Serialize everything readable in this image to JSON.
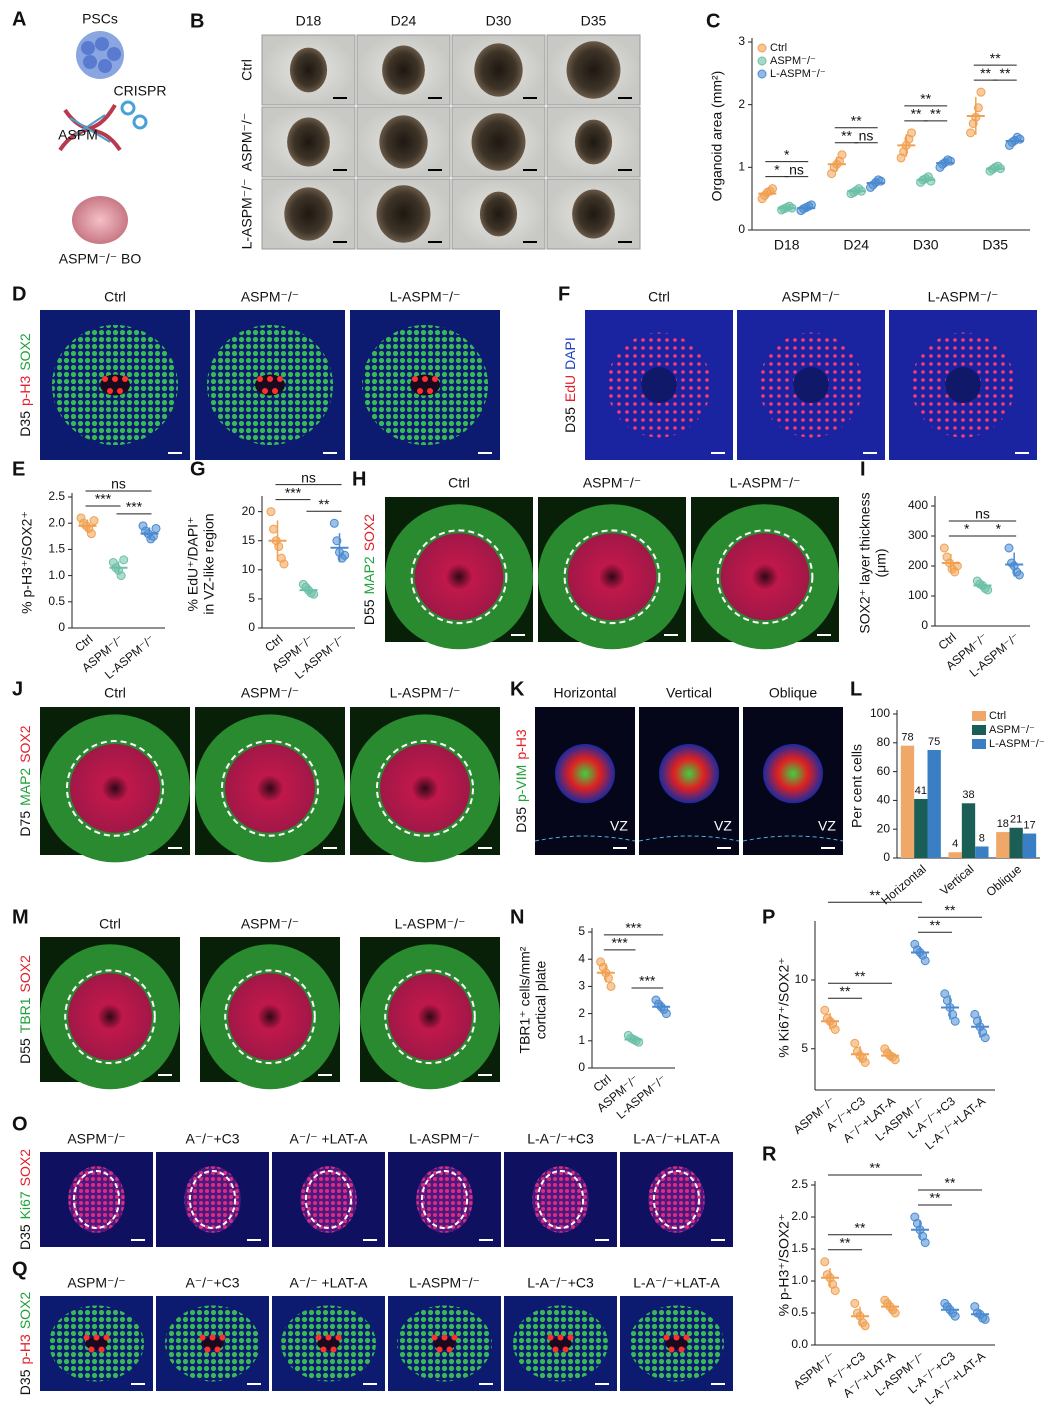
{
  "panels": {
    "A": {
      "letter": "A",
      "texts": [
        "PSCs",
        "CRISPR",
        "ASPM",
        "ASPM⁻/⁻ BO"
      ]
    },
    "B": {
      "letter": "B",
      "titles": [
        "D18",
        "D24",
        "D30",
        "D35"
      ],
      "rows": [
        "Ctrl",
        "ASPM⁻/⁻",
        "L-ASPM⁻/⁻"
      ]
    },
    "D": {
      "letter": "D",
      "titles": [
        "Ctrl",
        "ASPM⁻/⁻",
        "L-ASPM⁻/⁻"
      ],
      "side": [
        {
          "text": "D35"
        },
        {
          "text": "p-H3",
          "color": "#e0202a"
        },
        {
          "text": "SOX2",
          "color": "#1fa23a"
        }
      ]
    },
    "F": {
      "letter": "F",
      "titles": [
        "Ctrl",
        "ASPM⁻/⁻",
        "L-ASPM⁻/⁻"
      ],
      "side": [
        {
          "text": "D35"
        },
        {
          "text": "EdU",
          "color": "#e0202a"
        },
        {
          "text": "DAPI",
          "color": "#1f3fbf"
        }
      ]
    },
    "H": {
      "letter": "H",
      "titles": [
        "Ctrl",
        "ASPM⁻/⁻",
        "L-ASPM⁻/⁻"
      ],
      "side": [
        {
          "text": "D55"
        },
        {
          "text": "MAP2",
          "color": "#1fa23a"
        },
        {
          "text": "SOX2",
          "color": "#e0202a"
        }
      ]
    },
    "J": {
      "letter": "J",
      "titles": [
        "Ctrl",
        "ASPM⁻/⁻",
        "L-ASPM⁻/⁻"
      ],
      "side": [
        {
          "text": "D75"
        },
        {
          "text": "MAP2",
          "color": "#1fa23a"
        },
        {
          "text": "SOX2",
          "color": "#e0202a"
        }
      ]
    },
    "K": {
      "letter": "K",
      "titles": [
        "Horizontal",
        "Vertical",
        "Oblique"
      ],
      "vz": [
        "VZ",
        "VZ",
        "VZ"
      ],
      "side": [
        {
          "text": "D35"
        },
        {
          "text": "p-VIM",
          "color": "#1fa23a"
        },
        {
          "text": "p-H3",
          "color": "#e0202a"
        }
      ]
    },
    "M": {
      "letter": "M",
      "titles": [
        "Ctrl",
        "ASPM⁻/⁻",
        "L-ASPM⁻/⁻"
      ],
      "side": [
        {
          "text": "D55"
        },
        {
          "text": "TBR1",
          "color": "#1fa23a"
        },
        {
          "text": "SOX2",
          "color": "#e0202a"
        }
      ]
    },
    "O": {
      "letter": "O",
      "titles": [
        "ASPM⁻/⁻",
        "A⁻/⁻+C3",
        "A⁻/⁻ +LAT-A",
        "L-ASPM⁻/⁻",
        "L-A⁻/⁻+C3",
        "L-A⁻/⁻+LAT-A"
      ],
      "side": [
        {
          "text": "D35"
        },
        {
          "text": "Ki67",
          "color": "#1fa23a"
        },
        {
          "text": "SOX2",
          "color": "#e0202a"
        }
      ]
    },
    "Q": {
      "letter": "Q",
      "titles": [
        "ASPM⁻/⁻",
        "A⁻/⁻+C3",
        "A⁻/⁻ +LAT-A",
        "L-ASPM⁻/⁻",
        "L-A⁻/⁻+C3",
        "L-A⁻/⁻+LAT-A"
      ],
      "side": [
        {
          "text": "D35"
        },
        {
          "text": "p-H3",
          "color": "#e0202a"
        },
        {
          "text": "SOX2",
          "color": "#1fa23a"
        }
      ]
    }
  },
  "chart_data": [
    {
      "type": "dot",
      "panel": "C",
      "ylabel": [
        "Organoid area (mm²)"
      ],
      "ylim": [
        0,
        3
      ],
      "yticks": [
        0,
        1,
        2,
        3
      ],
      "legend": "upper left",
      "categories": [
        "D18",
        "D24",
        "D30",
        "D35"
      ],
      "series": [
        {
          "name": "Ctrl",
          "color": "#f0a050",
          "values": [
            0.58,
            1.05,
            1.35,
            1.82
          ],
          "errors": [
            0.06,
            0.12,
            0.18,
            0.3
          ],
          "points": [
            [
              0.5,
              0.55,
              0.6,
              0.62,
              0.66
            ],
            [
              0.9,
              1.0,
              1.05,
              1.1,
              1.2
            ],
            [
              1.15,
              1.25,
              1.35,
              1.45,
              1.55
            ],
            [
              1.55,
              1.7,
              1.8,
              1.95,
              2.2
            ]
          ]
        },
        {
          "name": "ASPM⁻/⁻",
          "color": "#6cc0a8",
          "values": [
            0.35,
            0.62,
            0.8,
            0.98
          ],
          "errors": [
            0.03,
            0.04,
            0.04,
            0.04
          ],
          "points": [
            [
              0.32,
              0.34,
              0.36,
              0.38,
              0.35
            ],
            [
              0.58,
              0.6,
              0.63,
              0.66,
              0.62
            ],
            [
              0.76,
              0.8,
              0.82,
              0.85,
              0.78
            ],
            [
              0.94,
              0.97,
              1.0,
              1.02,
              0.98
            ]
          ]
        },
        {
          "name": "L-ASPM⁻/⁻",
          "color": "#4a8ad0",
          "values": [
            0.35,
            0.75,
            1.07,
            1.42
          ],
          "errors": [
            0.04,
            0.06,
            0.06,
            0.06
          ],
          "points": [
            [
              0.31,
              0.34,
              0.36,
              0.38,
              0.4
            ],
            [
              0.68,
              0.72,
              0.76,
              0.8,
              0.78
            ],
            [
              1.0,
              1.05,
              1.08,
              1.12,
              1.1
            ],
            [
              1.35,
              1.4,
              1.43,
              1.48,
              1.45
            ]
          ]
        }
      ],
      "brackets": [
        {
          "category": 0,
          "from": 0,
          "to": 1,
          "label": "*"
        },
        {
          "category": 0,
          "from": 1,
          "to": 2,
          "label": "ns"
        },
        {
          "category": 0,
          "from": 0,
          "to": 2,
          "label": "*"
        },
        {
          "category": 1,
          "from": 0,
          "to": 1,
          "label": "**"
        },
        {
          "category": 1,
          "from": 1,
          "to": 2,
          "label": "ns"
        },
        {
          "category": 1,
          "from": 0,
          "to": 2,
          "label": "**"
        },
        {
          "category": 2,
          "from": 0,
          "to": 1,
          "label": "**"
        },
        {
          "category": 2,
          "from": 1,
          "to": 2,
          "label": "**"
        },
        {
          "category": 2,
          "from": 0,
          "to": 2,
          "label": "**"
        },
        {
          "category": 3,
          "from": 0,
          "to": 1,
          "label": "**"
        },
        {
          "category": 3,
          "from": 1,
          "to": 2,
          "label": "**"
        },
        {
          "category": 3,
          "from": 0,
          "to": 2,
          "label": "**"
        }
      ]
    },
    {
      "type": "dot",
      "panel": "E",
      "ylabel": [
        "% p-H3⁺/SOX2⁺"
      ],
      "ylim": [
        0,
        2.5
      ],
      "yticks": [
        0,
        0.5,
        {
          "value": 1,
          "label": "1.0"
        },
        1.5,
        {
          "value": 2,
          "label": "2.0"
        },
        2.5
      ],
      "categories": [
        "Ctrl",
        "ASPM⁻/⁻",
        "L-ASPM⁻/⁻"
      ],
      "colors": [
        "#f0a050",
        "#6cc0a8",
        "#4a8ad0"
      ],
      "values": [
        1.95,
        1.15,
        1.8
      ],
      "errors": [
        0.12,
        0.12,
        0.12
      ],
      "points": [
        [
          2.1,
          2.0,
          1.95,
          1.9,
          1.8,
          2.05
        ],
        [
          1.25,
          1.15,
          1.1,
          1.0,
          1.3
        ],
        [
          1.95,
          1.85,
          1.8,
          1.7,
          1.75,
          1.9
        ]
      ],
      "brackets": [
        {
          "from": 0,
          "to": 1,
          "label": "***"
        },
        {
          "from": 1,
          "to": 2,
          "label": "***"
        },
        {
          "from": 0,
          "to": 2,
          "label": "ns"
        }
      ]
    },
    {
      "type": "dot",
      "panel": "G",
      "ylabel": [
        "% EdU⁺/DAPI⁺",
        "in VZ-like region"
      ],
      "ylim": [
        0,
        22
      ],
      "yticks": [
        0,
        5,
        10,
        15,
        20
      ],
      "categories": [
        "Ctrl",
        "ASPM⁻/⁻",
        "L-ASPM⁻/⁻"
      ],
      "colors": [
        "#f0a050",
        "#6cc0a8",
        "#4a8ad0"
      ],
      "values": [
        15,
        6.5,
        13.8
      ],
      "errors": [
        3.5,
        0.8,
        2.5
      ],
      "points": [
        [
          20,
          17,
          15,
          14,
          12,
          11
        ],
        [
          7.5,
          7,
          6.5,
          6,
          5.8
        ],
        [
          18,
          15,
          13,
          12,
          12.5
        ]
      ],
      "brackets": [
        {
          "from": 0,
          "to": 1,
          "label": "***"
        },
        {
          "from": 1,
          "to": 2,
          "label": "**"
        },
        {
          "from": 0,
          "to": 2,
          "label": "ns"
        }
      ]
    },
    {
      "type": "dot",
      "panel": "I",
      "ylabel": [
        "SOX2⁺ layer thickness",
        "(μm)"
      ],
      "ylim": [
        0,
        420
      ],
      "yticks": [
        0,
        100,
        200,
        300,
        400
      ],
      "categories": [
        "Ctrl",
        "ASPM⁻/⁻",
        "L-ASPM⁻/⁻"
      ],
      "colors": [
        "#f0a050",
        "#6cc0a8",
        "#4a8ad0"
      ],
      "values": [
        210,
        135,
        205
      ],
      "errors": [
        30,
        12,
        40
      ],
      "points": [
        [
          260,
          230,
          210,
          190,
          180,
          200
        ],
        [
          150,
          140,
          135,
          125,
          120
        ],
        [
          260,
          210,
          200,
          180,
          170
        ]
      ],
      "brackets": [
        {
          "from": 0,
          "to": 1,
          "label": "*"
        },
        {
          "from": 1,
          "to": 2,
          "label": "*"
        },
        {
          "from": 0,
          "to": 2,
          "label": "ns"
        }
      ]
    },
    {
      "type": "bar",
      "panel": "L",
      "ylabel": [
        "Per cent cells"
      ],
      "ylim": [
        0,
        100
      ],
      "yticks": [
        0,
        20,
        40,
        60,
        80,
        100
      ],
      "legend": "upper right",
      "categories": [
        "Horizontal",
        "Vertical",
        "Oblique"
      ],
      "series": [
        {
          "name": "Ctrl",
          "color": "#f0a868",
          "values": [
            78,
            4,
            18
          ]
        },
        {
          "name": "ASPM⁻/⁻",
          "color": "#1a5e55",
          "values": [
            41,
            38,
            21
          ]
        },
        {
          "name": "L-ASPM⁻/⁻",
          "color": "#3a7fc4",
          "values": [
            75,
            8,
            17
          ]
        }
      ]
    },
    {
      "type": "dot",
      "panel": "N",
      "ylabel": [
        "TBR1⁺ cells/mm²",
        "cortical plate"
      ],
      "ylim": [
        0,
        5
      ],
      "yticks": [
        0,
        1,
        2,
        3,
        4,
        5
      ],
      "categories": [
        "Ctrl",
        "ASPM⁻/⁻",
        "L-ASPM⁻/⁻"
      ],
      "colors": [
        "#f0a050",
        "#6cc0a8",
        "#4a8ad0"
      ],
      "values": [
        3.5,
        1.05,
        2.25
      ],
      "errors": [
        0.35,
        0.1,
        0.18
      ],
      "points": [
        [
          3.9,
          3.7,
          3.5,
          3.3,
          3.0
        ],
        [
          1.2,
          1.1,
          1.05,
          1.0,
          0.95
        ],
        [
          2.5,
          2.35,
          2.25,
          2.15,
          2.0
        ]
      ],
      "brackets": [
        {
          "from": 0,
          "to": 1,
          "label": "***"
        },
        {
          "from": 1,
          "to": 2,
          "label": "***"
        },
        {
          "from": 0,
          "to": 2,
          "label": "***"
        }
      ]
    },
    {
      "type": "dot",
      "panel": "P",
      "ylabel": [
        "% Ki67⁺/SOX2⁺"
      ],
      "ylim": [
        2,
        14
      ],
      "yticks": [
        5,
        10
      ],
      "categories": [
        "ASPM⁻/⁻",
        "A⁻/⁻+C3",
        "A⁻/⁻+LAT-A",
        "L-ASPM⁻/⁻",
        "L-A⁻/⁻+C3",
        "L-A⁻/⁻+LAT-A"
      ],
      "colors": [
        "#f0a050",
        "#f0a050",
        "#f0a050",
        "#4a8ad0",
        "#4a8ad0",
        "#4a8ad0"
      ],
      "values": [
        7.0,
        4.6,
        4.5,
        12.0,
        8.0,
        6.6
      ],
      "errors": [
        0.6,
        0.6,
        0.4,
        0.4,
        0.9,
        0.8
      ],
      "points": [
        [
          7.8,
          7.2,
          7.0,
          6.8,
          6.4
        ],
        [
          5.4,
          4.8,
          4.5,
          4.3,
          4.0
        ],
        [
          5.0,
          4.7,
          4.5,
          4.4,
          4.2
        ],
        [
          12.6,
          12.2,
          12.0,
          11.8,
          11.4
        ],
        [
          9.0,
          8.5,
          8.0,
          7.5,
          7.0
        ],
        [
          7.5,
          7.0,
          6.6,
          6.2,
          5.8
        ]
      ],
      "brackets": [
        {
          "from": 0,
          "to": 1,
          "label": "**"
        },
        {
          "from": 0,
          "to": 2,
          "label": "**"
        },
        {
          "from": 0,
          "to": 3,
          "label": "**"
        },
        {
          "from": 3,
          "to": 4,
          "label": "**"
        },
        {
          "from": 3,
          "to": 5,
          "label": "**"
        }
      ]
    },
    {
      "type": "dot",
      "panel": "R",
      "ylabel": [
        "% p-H3⁺/SOX2⁺"
      ],
      "ylim": [
        0,
        2.5
      ],
      "yticks": [
        {
          "value": 0,
          "label": "0.0"
        },
        0.5,
        {
          "value": 1,
          "label": "1.0"
        },
        1.5,
        {
          "value": 2,
          "label": "2.0"
        },
        2.5
      ],
      "categories": [
        "ASPM⁻/⁻",
        "A⁻/⁻+C3",
        "A⁻/⁻+LAT-A",
        "L-ASPM⁻/⁻",
        "L-A⁻/⁻+C3",
        "L-A⁻/⁻+LAT-A"
      ],
      "colors": [
        "#f0a050",
        "#f0a050",
        "#f0a050",
        "#4a8ad0",
        "#4a8ad0",
        "#4a8ad0"
      ],
      "values": [
        1.05,
        0.45,
        0.6,
        1.8,
        0.55,
        0.48
      ],
      "errors": [
        0.15,
        0.15,
        0.08,
        0.15,
        0.08,
        0.08
      ],
      "points": [
        [
          1.3,
          1.1,
          1.05,
          0.95,
          0.85
        ],
        [
          0.65,
          0.5,
          0.45,
          0.35,
          0.3
        ],
        [
          0.7,
          0.65,
          0.6,
          0.55,
          0.5
        ],
        [
          2.0,
          1.9,
          1.8,
          1.7,
          1.6
        ],
        [
          0.65,
          0.6,
          0.55,
          0.5,
          0.45
        ],
        [
          0.6,
          0.5,
          0.48,
          0.42,
          0.4
        ]
      ],
      "brackets": [
        {
          "from": 0,
          "to": 1,
          "label": "**"
        },
        {
          "from": 0,
          "to": 2,
          "label": "**"
        },
        {
          "from": 0,
          "to": 3,
          "label": "**"
        },
        {
          "from": 3,
          "to": 4,
          "label": "**"
        },
        {
          "from": 3,
          "to": 5,
          "label": "**"
        }
      ]
    }
  ]
}
